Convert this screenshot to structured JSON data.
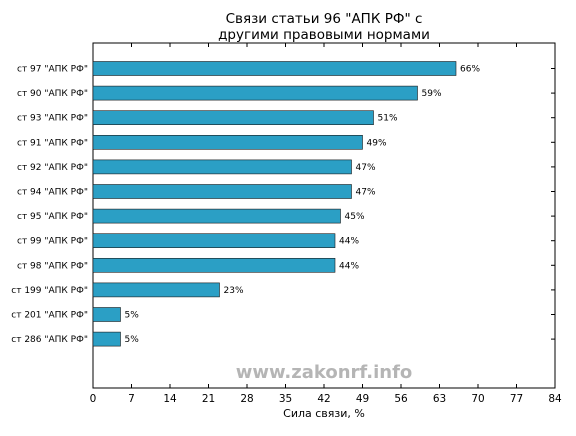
{
  "chart_data": {
    "type": "bar",
    "orientation": "horizontal",
    "title_lines": [
      "Связи статьи 96 \"АПК РФ\" с",
      "другими правовыми нормами"
    ],
    "xlabel": "Сила связи, %",
    "ylabel": "",
    "xlim": [
      0,
      84
    ],
    "xticks": [
      0,
      7,
      14,
      21,
      28,
      35,
      42,
      49,
      56,
      63,
      70,
      77,
      84
    ],
    "grid": false,
    "bar_color": "#2b9fc5",
    "categories": [
      "ст 97 \"АПК РФ\"",
      "ст 90 \"АПК РФ\"",
      "ст 93 \"АПК РФ\"",
      "ст 91 \"АПК РФ\"",
      "ст 92 \"АПК РФ\"",
      "ст 94 \"АПК РФ\"",
      "ст 95 \"АПК РФ\"",
      "ст 99 \"АПК РФ\"",
      "ст 98 \"АПК РФ\"",
      "ст 199 \"АПК РФ\"",
      "ст 201 \"АПК РФ\"",
      "ст 286 \"АПК РФ\""
    ],
    "values": [
      66,
      59,
      51,
      49,
      47,
      47,
      45,
      44,
      44,
      23,
      5,
      5
    ],
    "value_labels": [
      "66%",
      "59%",
      "51%",
      "49%",
      "47%",
      "47%",
      "45%",
      "44%",
      "44%",
      "23%",
      "5%",
      "5%"
    ]
  },
  "watermark": "www.zakonrf.info"
}
